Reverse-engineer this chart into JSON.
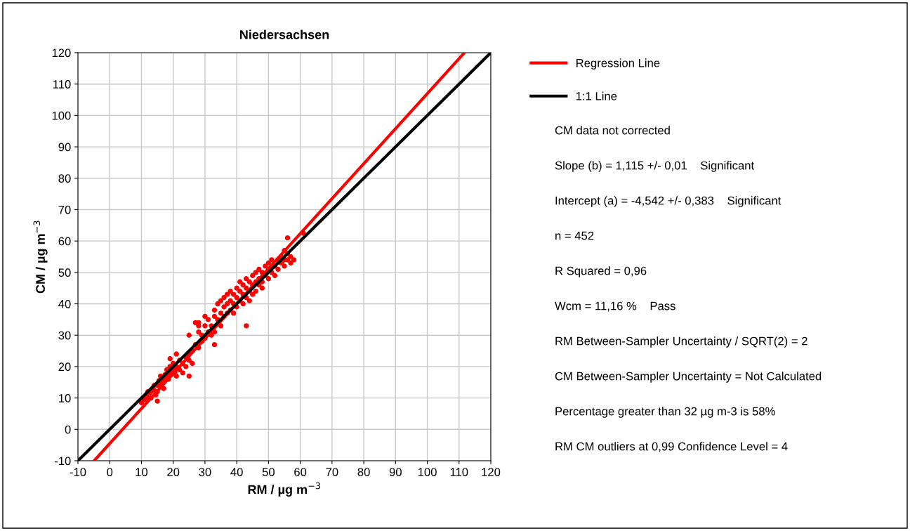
{
  "chart_data": {
    "type": "scatter",
    "title": "Niedersachsen",
    "xlabel": "RM / µg m$^{−3}$",
    "ylabel": "CM / µg m$^{−3}$",
    "xlim": [
      -10,
      120
    ],
    "ylim": [
      -10,
      120
    ],
    "xticks": [
      -10,
      0,
      10,
      20,
      30,
      40,
      50,
      60,
      70,
      80,
      90,
      100,
      110,
      120
    ],
    "yticks": [
      -10,
      0,
      10,
      20,
      30,
      40,
      50,
      60,
      70,
      80,
      90,
      100,
      110,
      120
    ],
    "grid": true,
    "legend": "top right",
    "marker": "circle",
    "series": [
      {
        "color": "#ff0000",
        "x": [
          10,
          10.5,
          11,
          11.5,
          12,
          12,
          12.5,
          13,
          13,
          13.5,
          14,
          14,
          14.5,
          15,
          15,
          15.5,
          16,
          16,
          16.5,
          17,
          17,
          17.5,
          18,
          18,
          18.5,
          19,
          19,
          19.5,
          20,
          20,
          20.5,
          21,
          21,
          22,
          22,
          23,
          23,
          24,
          24,
          25,
          25,
          25,
          26,
          26,
          27,
          27,
          28,
          28,
          28,
          29,
          29,
          30,
          30,
          30,
          31,
          31,
          32,
          32,
          33,
          33,
          33,
          34,
          34,
          35,
          35,
          35,
          36,
          36,
          36,
          37,
          37,
          37,
          38,
          38,
          38,
          39,
          39,
          39,
          40,
          40,
          40,
          41,
          41,
          41,
          42,
          42,
          42,
          43,
          43,
          43,
          44,
          44,
          44,
          45,
          45,
          45,
          46,
          46,
          46,
          47,
          47,
          47,
          48,
          48,
          48,
          49,
          49,
          50,
          50,
          50,
          51,
          51,
          52,
          52,
          53,
          53,
          54,
          54,
          55,
          55,
          55,
          56,
          56,
          57,
          57,
          58,
          19,
          25,
          28,
          43,
          33,
          21,
          15,
          56,
          61
        ],
        "values": [
          8.5,
          10,
          9.5,
          11,
          10,
          12,
          11.5,
          12,
          10,
          13,
          12.5,
          14,
          11,
          14,
          9,
          15.5,
          14,
          17,
          15,
          16,
          13,
          17.5,
          17,
          19,
          16,
          18,
          20,
          17.5,
          19,
          21,
          18,
          20,
          17,
          19,
          22,
          21,
          18,
          23,
          20,
          24,
          22,
          30,
          25,
          21,
          27,
          34,
          26,
          31,
          33,
          28,
          30,
          29,
          33,
          36,
          31,
          35,
          33,
          30,
          36,
          38,
          31,
          40,
          35,
          37,
          41,
          33,
          39,
          42,
          36,
          40,
          37,
          43,
          41,
          38,
          44,
          40,
          37,
          43,
          42,
          39,
          45,
          41,
          44,
          47,
          43,
          40,
          46,
          45,
          42,
          48,
          44,
          47,
          41,
          46,
          49,
          43,
          47,
          44,
          50,
          48,
          46,
          51,
          47,
          50,
          45,
          49,
          52,
          48,
          51,
          53,
          50,
          54,
          52,
          49,
          54,
          51,
          55,
          53,
          57,
          54,
          52,
          56,
          54,
          55,
          53,
          54,
          22.5,
          17,
          34,
          33,
          27,
          24,
          12,
          61,
          62.5
        ]
      },
      {
        "type": "line",
        "marker": "none",
        "name": "Regression Line",
        "color": "#ff0000",
        "x": [
          -4.9,
          111.7
        ],
        "values": [
          -10,
          120
        ]
      },
      {
        "type": "line",
        "marker": "none",
        "name": "1:1 Line",
        "color": "#000000",
        "x": [
          -10,
          120
        ],
        "values": [
          -10,
          120
        ]
      }
    ],
    "annotations": [
      "CM data not corrected",
      "Slope (b) = 1,115 +/- 0,01    Significant",
      "Intercept (a) = -4,542 +/- 0,383    Significant",
      "n = 452",
      "R Squared = 0,96",
      "Wcm = 11,16 %    Pass",
      "RM Between-Sampler Uncertainty / SQRT(2) = 2",
      "CM Between-Sampler Uncertainty = Not Calculated",
      "Percentage greater than 32 µg m-3 is 58%",
      "RM CM outliers at 0,99 Confidence Level = 4"
    ]
  }
}
